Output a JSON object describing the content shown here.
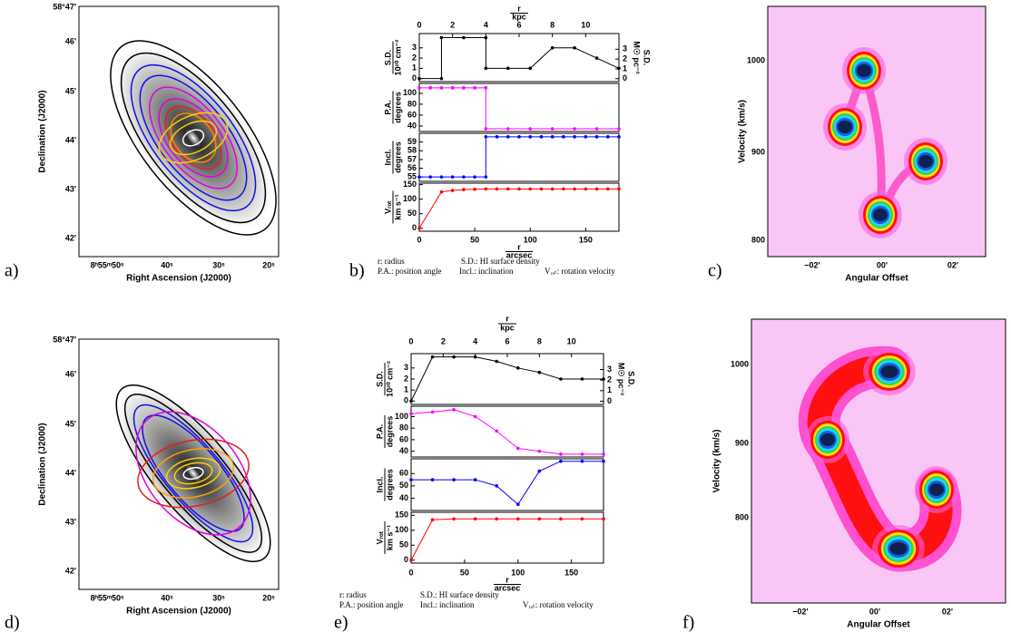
{
  "figure_panels": [
    {
      "label": "a)",
      "xlabel": "Right Ascension (J2000)",
      "ylabel": "Declination (J2000)",
      "xticks": [
        "8ʰ55ᵐ50ˢ",
        "40ˢ",
        "30ˢ",
        "20ˢ"
      ],
      "yticks": [
        "58°47'",
        "46'",
        "45'",
        "44'",
        "43'",
        "42'"
      ]
    },
    {
      "label": "b)",
      "legend": [
        "r: radius",
        "S.D.: HI surface density",
        "P.A.: position angle",
        "Incl.: inclination",
        "Vᵣₒₜ: rotation velocity"
      ],
      "top_axis": {
        "label_num": "r",
        "label_den": "kpc",
        "xlim": [
          0,
          12
        ],
        "xticks": [
          0,
          2,
          4,
          6,
          8,
          10
        ]
      },
      "xlabel_num": "r",
      "xlabel_den": "arcsec"
    },
    {
      "label": "c)",
      "xlabel": "Angular Offset",
      "ylabel": "Velocity (km/s)",
      "xticks": [
        "−02'",
        "00'",
        "02'"
      ],
      "yticks": [
        "1000",
        "900",
        "800"
      ]
    },
    {
      "label": "d)",
      "xlabel": "Right Ascension (J2000)",
      "ylabel": "Declination (J2000)",
      "xticks": [
        "8ʰ55ᵐ50ˢ",
        "40ˢ",
        "30ˢ",
        "20ˢ"
      ],
      "yticks": [
        "58°47'",
        "46'",
        "45'",
        "44'",
        "43'",
        "42'"
      ]
    },
    {
      "label": "e)",
      "legend": [
        "r: radius",
        "S.D.: HI surface density",
        "P.A.: position angle",
        "Incl.: inclination",
        "Vᵣₒₜ: rotation velocity"
      ],
      "top_axis": {
        "label_num": "r",
        "label_den": "kpc",
        "xlim": [
          0,
          12
        ],
        "xticks": [
          0,
          2,
          4,
          6,
          8,
          10
        ]
      },
      "xlabel_num": "r",
      "xlabel_den": "arcsec"
    },
    {
      "label": "f)",
      "xlabel": "Angular Offset",
      "ylabel": "Velocity (km/s)",
      "xticks": [
        "−02'",
        "00'",
        "02'"
      ],
      "yticks": [
        "1000",
        "900",
        "800"
      ]
    }
  ],
  "chart_data": [
    {
      "type": "line",
      "ylabel": "S.D.",
      "ylabel_unit": "10²⁰ cm⁻²",
      "y2label": "S.D.",
      "y2label_unit": "M☉ pc⁻²",
      "x": [
        0,
        20,
        20,
        40,
        60,
        60,
        80,
        100,
        120,
        140,
        160,
        180
      ],
      "series": [
        {
          "color": "#000000",
          "values": [
            0,
            0,
            4,
            4,
            4,
            1,
            1,
            1,
            3,
            3,
            2,
            1
          ]
        }
      ],
      "xlim": [
        0,
        180
      ],
      "ylim": [
        -0.3,
        4.4
      ],
      "yticks": [
        0,
        1,
        2,
        3
      ],
      "y2lim": [
        -0.3,
        4.6
      ],
      "y2ticks": [
        0,
        1,
        2,
        3
      ]
    },
    {
      "type": "line",
      "ylabel": "P.A.",
      "ylabel_unit": "degrees",
      "x": [
        0,
        10,
        20,
        30,
        40,
        50,
        60,
        60,
        80,
        100,
        120,
        140,
        160,
        180
      ],
      "series": [
        {
          "color": "#ff00ff",
          "values": [
            110,
            110,
            110,
            110,
            110,
            110,
            110,
            35,
            35,
            35,
            35,
            35,
            35,
            35
          ]
        }
      ],
      "xlim": [
        0,
        180
      ],
      "ylim": [
        30,
        118
      ],
      "yticks": [
        40,
        60,
        80,
        100
      ]
    },
    {
      "type": "line",
      "ylabel": "Incl.",
      "ylabel_unit": "degrees",
      "x": [
        0,
        10,
        20,
        30,
        40,
        50,
        60,
        60,
        70,
        80,
        90,
        100,
        110,
        120,
        130,
        140,
        150,
        160,
        170,
        180
      ],
      "series": [
        {
          "color": "#0000ff",
          "values": [
            55,
            55,
            55,
            55,
            55,
            55,
            55,
            59.6,
            59.6,
            59.6,
            59.6,
            59.6,
            59.6,
            59.6,
            59.6,
            59.6,
            59.6,
            59.6,
            59.6,
            59.6
          ]
        }
      ],
      "xlim": [
        0,
        180
      ],
      "ylim": [
        54.5,
        60
      ],
      "yticks": [
        55,
        56,
        57,
        58,
        59
      ]
    },
    {
      "type": "line",
      "ylabel": "Vᵣₒₜ",
      "ylabel_unit": "km s⁻¹",
      "x": [
        0,
        20,
        30,
        40,
        50,
        60,
        70,
        80,
        90,
        100,
        110,
        120,
        130,
        140,
        150,
        160,
        170,
        180
      ],
      "series": [
        {
          "color": "#ff0000",
          "values": [
            0,
            125,
            130,
            133,
            134,
            135,
            135,
            135,
            135,
            135,
            135,
            135,
            135,
            135,
            135,
            135,
            135,
            135
          ]
        }
      ],
      "xlim": [
        0,
        180
      ],
      "ylim": [
        -10,
        155
      ],
      "yticks": [
        0,
        50,
        100,
        150
      ],
      "xticks": [
        0,
        50,
        100,
        150
      ]
    },
    {
      "type": "line",
      "ylabel": "S.D.",
      "ylabel_unit": "10²⁰ cm⁻²",
      "y2label": "S.D.",
      "y2label_unit": "M☉ pc⁻²",
      "x": [
        0,
        20,
        40,
        60,
        80,
        100,
        120,
        140,
        160,
        180
      ],
      "series": [
        {
          "color": "#000000",
          "values": [
            0,
            4,
            4,
            4,
            3.6,
            3,
            2.6,
            2,
            2,
            2
          ]
        }
      ],
      "xlim": [
        0,
        180
      ],
      "ylim": [
        -0.3,
        4.3
      ],
      "yticks": [
        0,
        1,
        2,
        3
      ],
      "y2lim": [
        -0.3,
        4.5
      ],
      "y2ticks": [
        0,
        1,
        2,
        3
      ]
    },
    {
      "type": "line",
      "ylabel": "P.A.",
      "ylabel_unit": "degrees",
      "x": [
        0,
        20,
        40,
        60,
        80,
        100,
        120,
        140,
        160,
        180
      ],
      "series": [
        {
          "color": "#ff00ff",
          "values": [
            105,
            108,
            112,
            100,
            75,
            45,
            40,
            35,
            35,
            35
          ]
        }
      ],
      "xlim": [
        0,
        180
      ],
      "ylim": [
        30,
        118
      ],
      "yticks": [
        40,
        60,
        80,
        100
      ]
    },
    {
      "type": "line",
      "ylabel": "Incl.",
      "ylabel_unit": "degrees",
      "x": [
        0,
        20,
        40,
        60,
        80,
        100,
        120,
        140,
        160,
        180
      ],
      "series": [
        {
          "color": "#0000ff",
          "values": [
            55,
            55,
            55,
            55,
            50,
            35,
            62,
            70,
            70,
            70
          ]
        }
      ],
      "xlim": [
        0,
        180
      ],
      "ylim": [
        30,
        72
      ],
      "yticks": [
        40,
        50,
        60
      ]
    },
    {
      "type": "line",
      "ylabel": "Vᵣₒₜ",
      "ylabel_unit": "km s⁻¹",
      "x": [
        0,
        20,
        40,
        60,
        80,
        100,
        120,
        140,
        160,
        180
      ],
      "series": [
        {
          "color": "#ff0000",
          "values": [
            0,
            135,
            138,
            138,
            138,
            138,
            138,
            138,
            138,
            138
          ]
        }
      ],
      "xlim": [
        0,
        180
      ],
      "ylim": [
        -10,
        160
      ],
      "yticks": [
        0,
        50,
        100,
        150
      ],
      "xticks": [
        0,
        50,
        100,
        150
      ]
    }
  ]
}
